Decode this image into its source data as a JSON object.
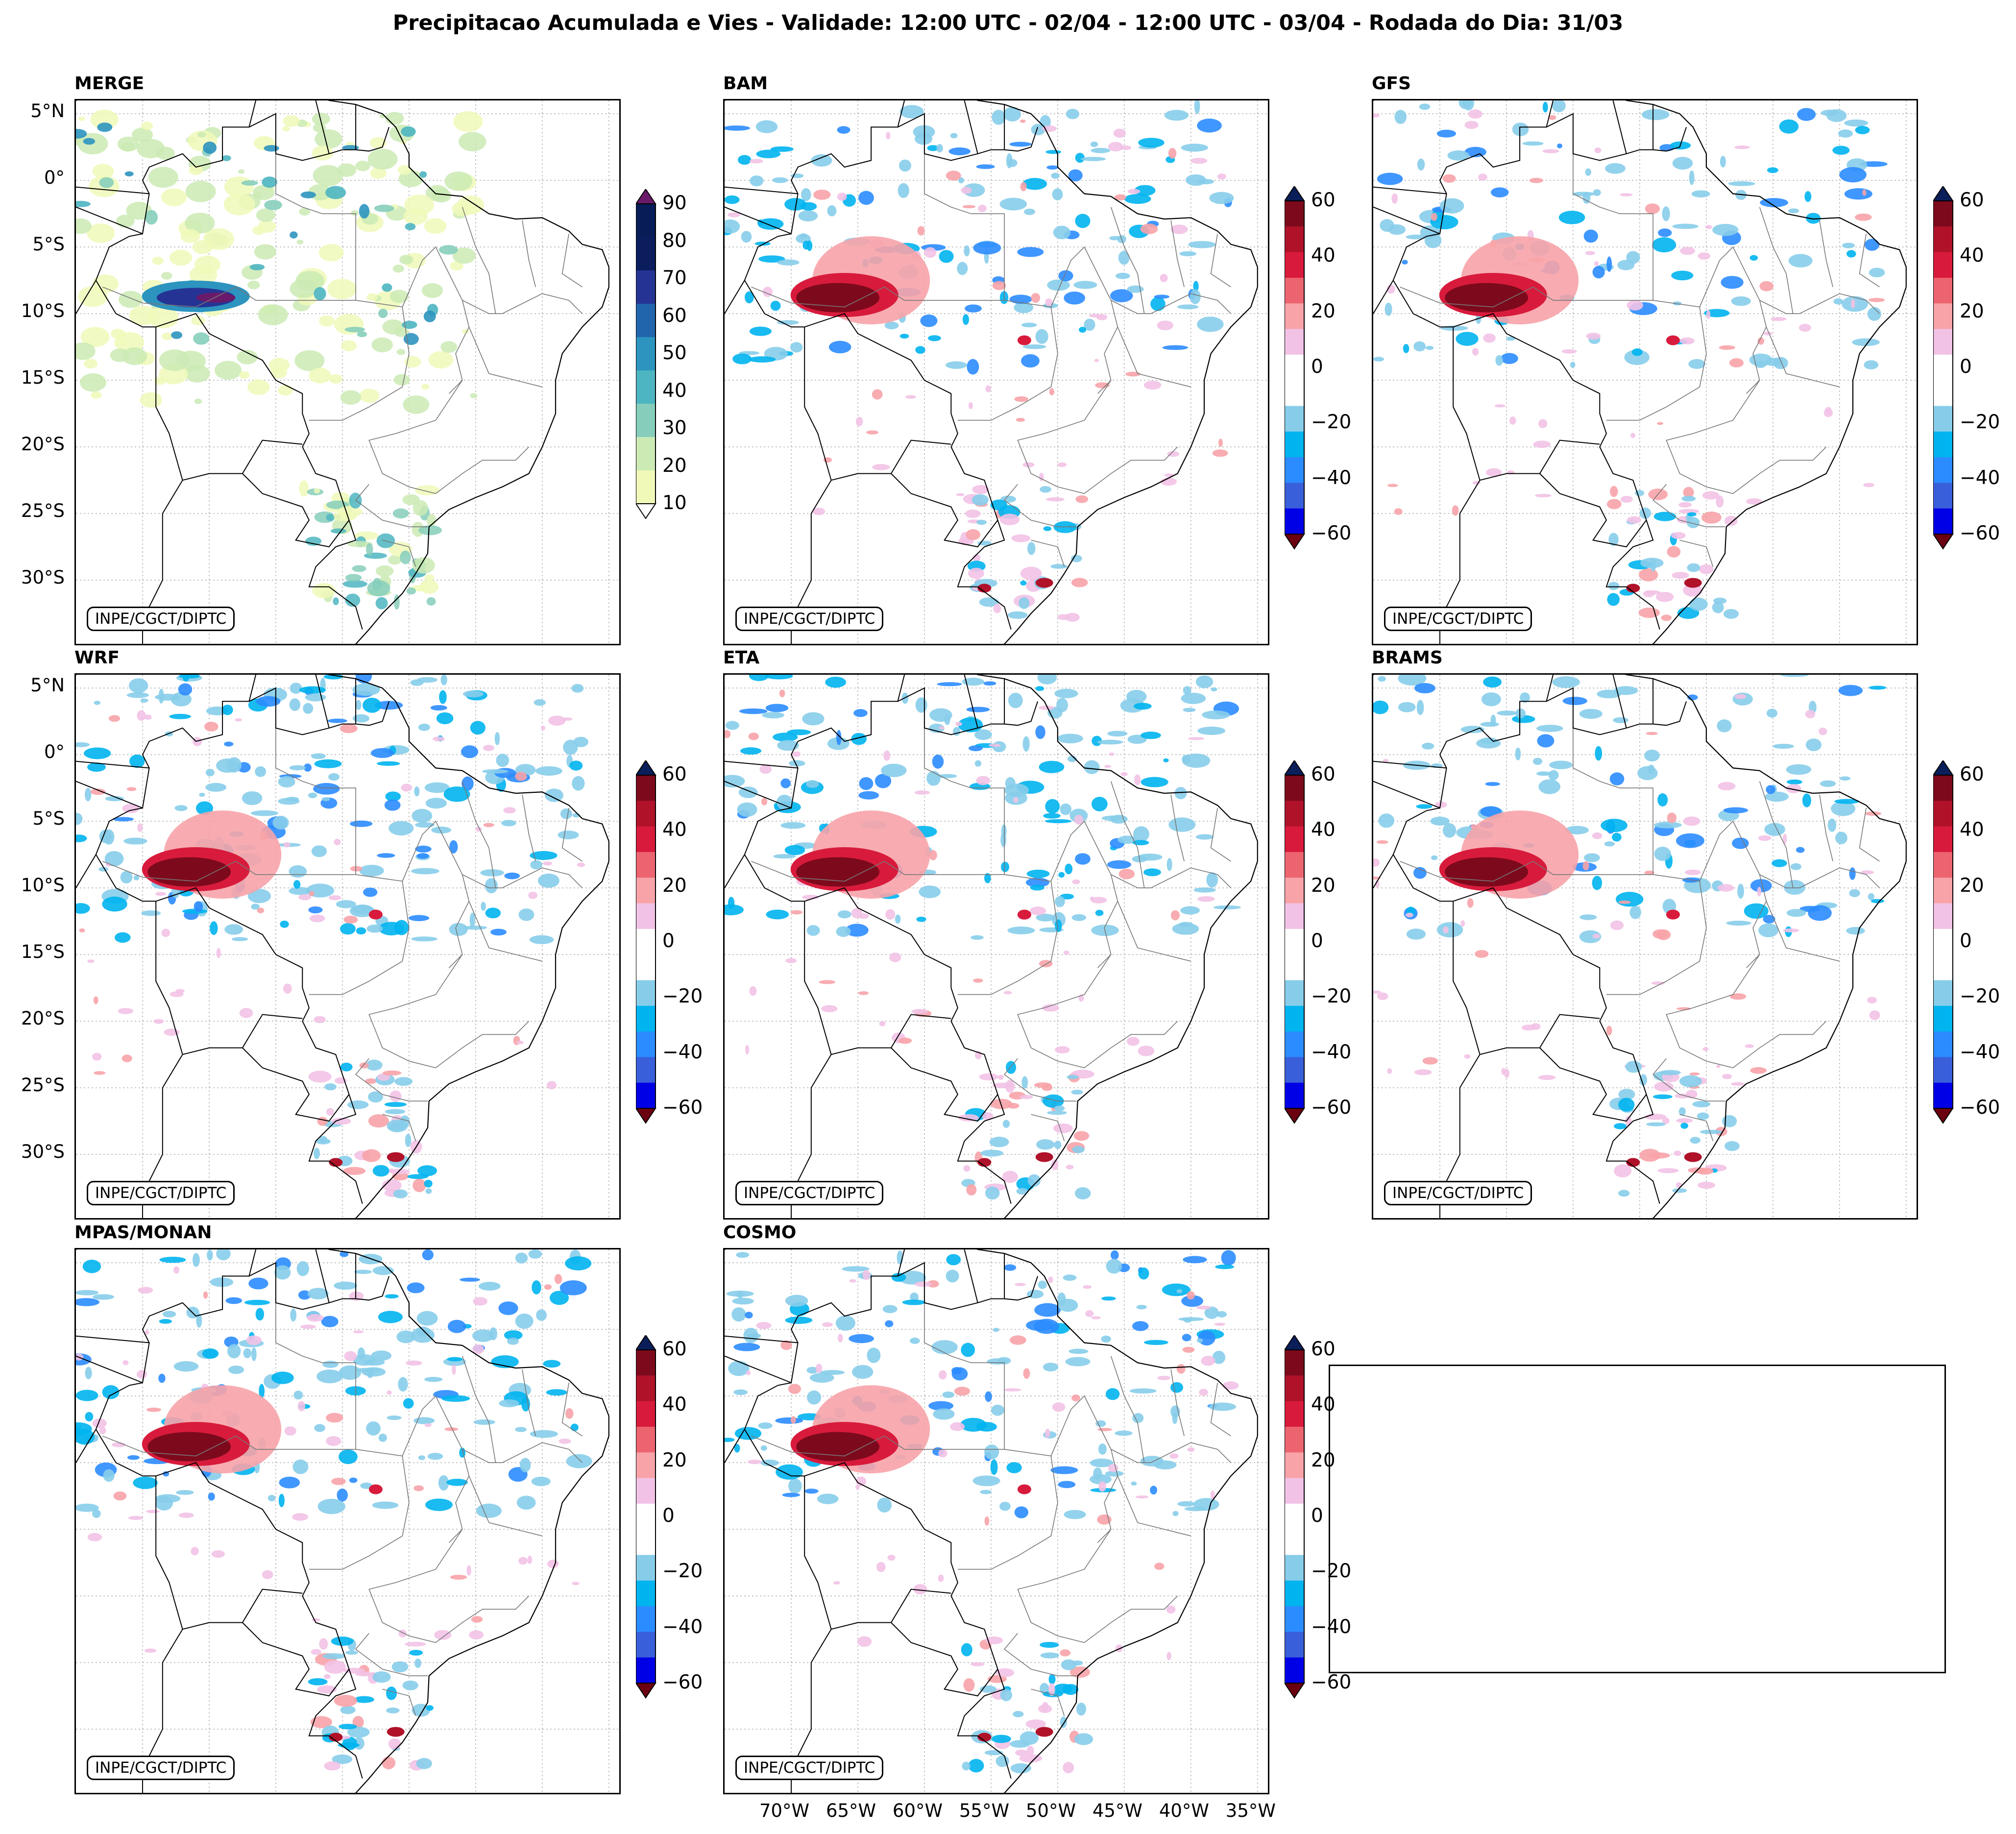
{
  "title": "Precipitacao Acumulada e Vies - Validade: 12:00 UTC - 02/04 - 12:00 UTC - 03/04 - Rodada do Dia: 31/03",
  "credit": "INPE/CGCT/DIPTC",
  "lat_labels": [
    "5°N",
    "0°",
    "5°S",
    "10°S",
    "15°S",
    "20°S",
    "25°S",
    "30°S"
  ],
  "lon_labels": [
    "70°W",
    "65°W",
    "60°W",
    "55°W",
    "50°W",
    "45°W",
    "40°W",
    "35°W"
  ],
  "panels": [
    {
      "title": "MERGE",
      "kind": "precip"
    },
    {
      "title": "BAM",
      "kind": "bias"
    },
    {
      "title": "GFS",
      "kind": "bias"
    },
    {
      "title": "WRF",
      "kind": "bias"
    },
    {
      "title": "ETA",
      "kind": "bias"
    },
    {
      "title": "BRAMS",
      "kind": "bias"
    },
    {
      "title": "MPAS/MONAN",
      "kind": "bias"
    },
    {
      "title": "COSMO",
      "kind": "bias"
    }
  ],
  "colorbars": {
    "precip": {
      "ticks": [
        "10",
        "20",
        "30",
        "40",
        "50",
        "60",
        "70",
        "80",
        "90"
      ],
      "colors": [
        "#f0f9b8",
        "#cbeab4",
        "#86cebb",
        "#4db5c1",
        "#2c94bf",
        "#2166ac",
        "#253494",
        "#0c1d5e",
        "#081d58"
      ],
      "over_color": "#6a1a6a"
    },
    "bias": {
      "ticks": [
        "60",
        "40",
        "20",
        "0",
        "−20",
        "−40",
        "−60"
      ],
      "colors": [
        "#0000e6",
        "#3a5fdb",
        "#2b8cff",
        "#00b4f0",
        "#87cdea",
        "#ffffff",
        "#ffffff",
        "#f2c2e6",
        "#f7a3a8",
        "#ec6470",
        "#d81b3c",
        "#b0122a",
        "#7d0a1c"
      ],
      "over_color": "#0a1e5a",
      "under_color": "#6b0010"
    }
  }
}
